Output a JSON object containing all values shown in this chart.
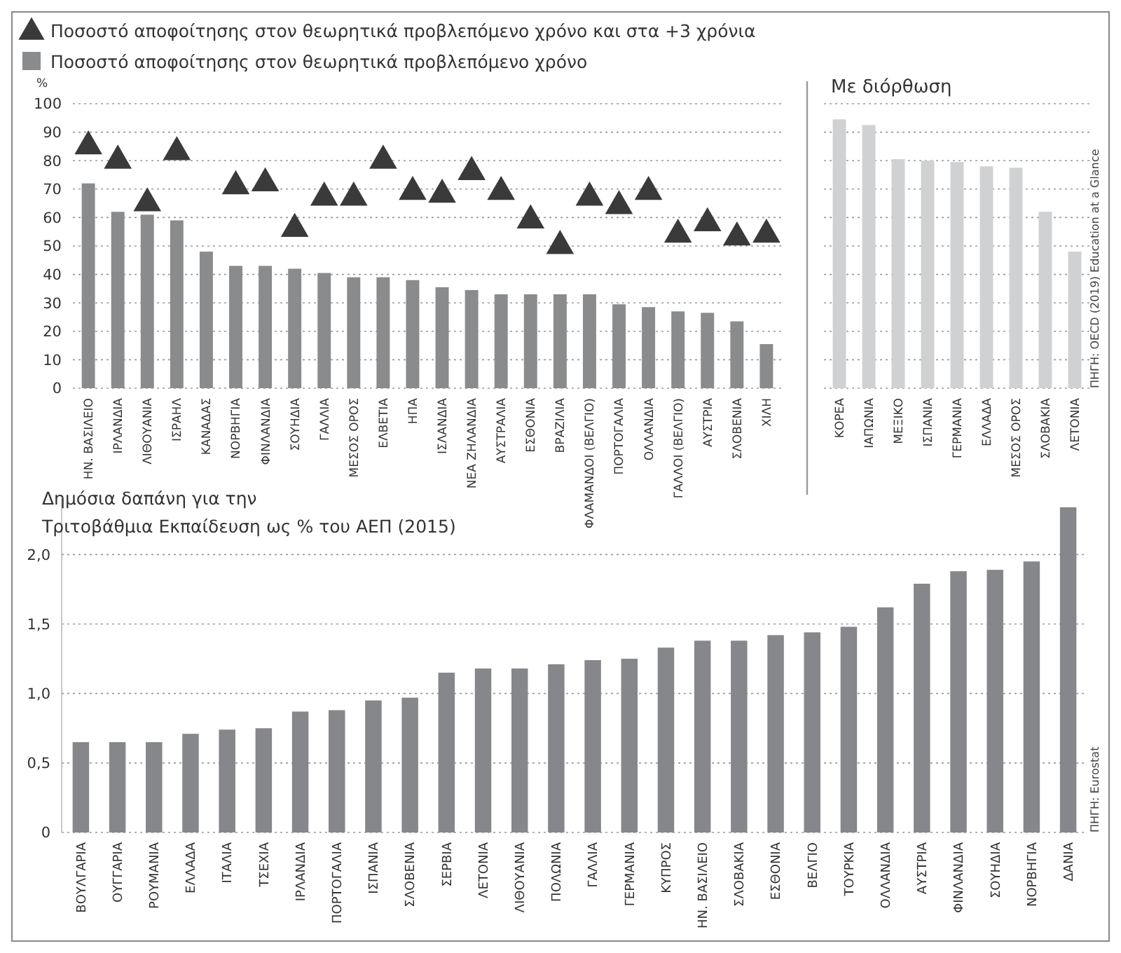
{
  "chart_data": [
    {
      "type": "bar",
      "ylabel": "%",
      "categories": [
        "ΗΝ. ΒΑΣΙΛΕΙΟ",
        "ΙΡΛΑΝΔΙΑ",
        "ΛΙΘΟΥΑΝΙΑ",
        "ΙΣΡΑΗΛ",
        "ΚΑΝΑΔΑΣ",
        "ΝΟΡΒΗΓΙΑ",
        "ΦΙΝΛΑΝΔΙΑ",
        "ΣΟΥΗΔΙΑ",
        "ΓΑΛΛΙΑ",
        "ΜΕΣΟΣ ΟΡΟΣ",
        "ΕΛΒΕΤΙΑ",
        "ΗΠΑ",
        "ΙΣΛΑΝΔΙΑ",
        "ΝΕΑ ΖΗΛΑΝΔΙΑ",
        "ΑΥΣΤΡΑΛΙΑ",
        "ΕΣΘΟΝΙΑ",
        "ΒΡΑΖΙΛΙΑ",
        "ΦΛΑΜΑΝΔΟΙ (ΒΕΛΓΙΟ)",
        "ΠΟΡΤΟΓΑΛΙΑ",
        "ΟΛΛΑΝΔΙΑ",
        "ΓΑΛΛΟΙ (ΒΕΛΓΙΟ)",
        "ΑΥΣΤΡΙΑ",
        "ΣΛΟΒΕΝΙΑ",
        "ΧΙΛΗ"
      ],
      "series": [
        {
          "type": "scatter",
          "name": "Ποσοστό αποφοίτησης στον θεωρητικά προβλεπόμενο χρόνο και στα +3 χρόνια",
          "color": "#3a3a3a",
          "values": [
            85,
            80,
            65,
            83,
            null,
            71,
            72,
            56,
            67,
            67,
            80,
            69,
            68,
            76,
            69,
            59,
            50,
            67,
            64,
            69,
            54,
            58,
            53,
            54
          ]
        },
        {
          "type": "bar",
          "name": "Ποσοστό αποφοίτησης στον θεωρητικά προβλεπόμενο χρόνο",
          "color": "#8a8b8d",
          "values": [
            72,
            62,
            61,
            59,
            48,
            43,
            43,
            42,
            40.5,
            39,
            39,
            38,
            35.5,
            34.5,
            33,
            33,
            33,
            33,
            29.5,
            28.5,
            27,
            26.5,
            23.5,
            15.5
          ]
        }
      ],
      "marker": "triangle",
      "legend": "top left",
      "grid": "y",
      "ylim": [
        0,
        100
      ],
      "yticks": [
        0,
        10,
        20,
        30,
        40,
        50,
        60,
        70,
        80,
        90,
        100
      ],
      "annotations": [
        "ΠΗΓΗ: OECD (2019) Education at a Glance"
      ]
    },
    {
      "type": "bar",
      "title": "Με διόρθωση",
      "categories": [
        "ΚΟΡΕΑ",
        "ΙΑΠΩΝΙΑ",
        "ΜΕΞΙΚΟ",
        "ΙΣΠΑΝΙΑ",
        "ΓΕΡΜΑΝΙΑ",
        "ΕΛΛΑΔΑ",
        "ΜΕΣΟΣ ΟΡΟΣ",
        "ΣΛΟΒΑΚΙΑ",
        "ΛΕΤΟΝΙΑ"
      ],
      "values": [
        94.5,
        92.5,
        80.5,
        80,
        79.5,
        78,
        77.5,
        62,
        48
      ],
      "color": "#d0d1d2",
      "grid": "y",
      "ylim": [
        0,
        100
      ],
      "yticks": [
        0,
        10,
        20,
        30,
        40,
        50,
        60,
        70,
        80,
        90,
        100
      ],
      "tick_labels": "x"
    },
    {
      "type": "bar",
      "title": "Δημόσια δαπάνη για την\nΤριτοβάθμια Εκπαίδευση ως % του ΑΕΠ (2015)",
      "categories": [
        "ΒΟΥΛΓΑΡΙΑ",
        "ΟΥΓΓΑΡΙΑ",
        "ΡΟΥΜΑΝΙΑ",
        "ΕΛΛΑΔΑ",
        "ΙΤΑΛΙΑ",
        "ΤΣΕΧΙΑ",
        "ΙΡΛΑΝΔΙΑ",
        "ΠΟΡΤΟΓΑΛΙΑ",
        "ΙΣΠΑΝΙΑ",
        "ΣΛΟΒΕΝΙΑ",
        "ΣΕΡΒΙΑ",
        "ΛΕΤΟΝΙΑ",
        "ΛΙΘΟΥΑΝΙΑ",
        "ΠΟΛΩΝΙΑ",
        "ΓΑΛΛΙΑ",
        "ΓΕΡΜΑΝΙΑ",
        "ΚΥΠΡΟΣ",
        "ΗΝ. ΒΑΣΙΛΕΙΟ",
        "ΣΛΟΒΑΚΙΑ",
        "ΕΣΘΟΝΙΑ",
        "ΒΕΛΓΙΟ",
        "ΤΟΥΡΚΙΑ",
        "ΟΛΛΑΝΔΙΑ",
        "ΑΥΣΤΡΙΑ",
        "ΦΙΝΛΑΝΔΙΑ",
        "ΣΟΥΗΔΙΑ",
        "ΝΟΡΒΗΓΙΑ",
        "ΔΑΝΙΑ"
      ],
      "values": [
        0.65,
        0.65,
        0.65,
        0.71,
        0.74,
        0.75,
        0.87,
        0.88,
        0.95,
        0.97,
        1.15,
        1.18,
        1.18,
        1.21,
        1.24,
        1.25,
        1.33,
        1.38,
        1.38,
        1.42,
        1.44,
        1.48,
        1.62,
        1.79,
        1.88,
        1.89,
        1.95,
        2.34
      ],
      "color": "#86878a",
      "grid": "y",
      "ylim": [
        0,
        2.4
      ],
      "yticks": [
        0,
        {
          "value": 0.5,
          "label": "0,5"
        },
        {
          "value": 1,
          "label": "1,0"
        },
        {
          "value": 1.5,
          "label": "1,5"
        },
        {
          "value": 2,
          "label": "2,0"
        }
      ],
      "annotations": [
        "ΠΗΓΗ: Eurostat"
      ]
    }
  ]
}
